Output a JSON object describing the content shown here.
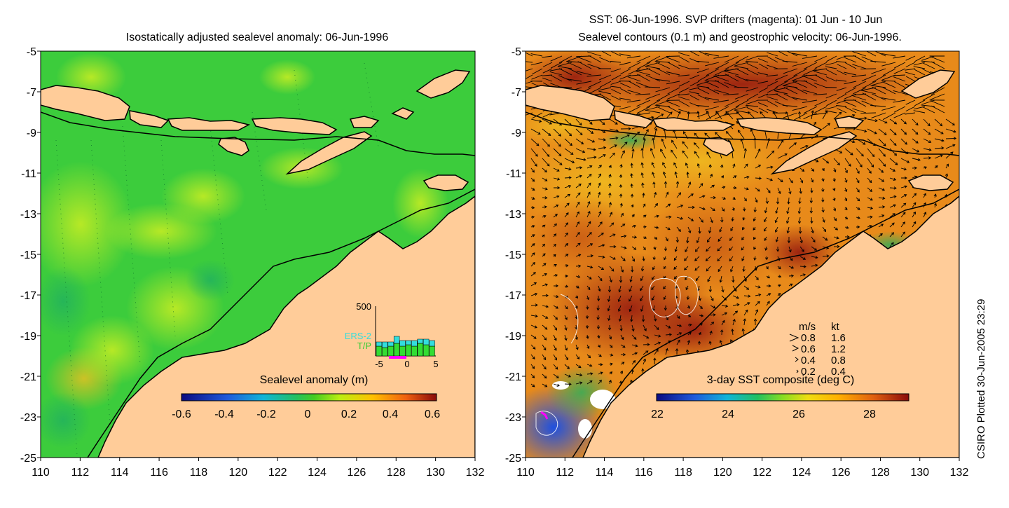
{
  "left_map": {
    "title": "Isostatically adjusted sealevel anomaly: 06-Jun-1996",
    "x_ticks": [
      "110",
      "112",
      "114",
      "116",
      "118",
      "120",
      "122",
      "124",
      "126",
      "128",
      "130",
      "132"
    ],
    "y_ticks": [
      "-5",
      "-7",
      "-9",
      "-11",
      "-13",
      "-15",
      "-17",
      "-19",
      "-21",
      "-23",
      "-25"
    ],
    "colorbar": {
      "label": "Sealevel anomaly (m)",
      "ticks": [
        "-0.6",
        "-0.4",
        "-0.2",
        "0",
        "0.2",
        "0.4",
        "0.6"
      ]
    },
    "histogram": {
      "y_label": "500",
      "legend_ers": "ERS-2",
      "legend_tp": "T/P",
      "x_ticks": [
        "-5",
        "0",
        "5"
      ]
    }
  },
  "right_map": {
    "title_line1": "SST: 06-Jun-1996. SVP drifters (magenta): 01 Jun - 10 Jun",
    "title_line2": "Sealevel contours (0.1 m) and geostrophic velocity: 06-Jun-1996.",
    "x_ticks": [
      "110",
      "112",
      "114",
      "116",
      "118",
      "120",
      "122",
      "124",
      "126",
      "128",
      "130",
      "132"
    ],
    "y_ticks": [
      "-5",
      "-7",
      "-9",
      "-11",
      "-13",
      "-15",
      "-17",
      "-19",
      "-21",
      "-23",
      "-25"
    ],
    "colorbar": {
      "label": "3-day SST composite (deg C)",
      "ticks": [
        "22",
        "24",
        "26",
        "28"
      ]
    },
    "velocity_legend": {
      "header_ms": "m/s",
      "header_kt": "kt",
      "rows": [
        {
          "ms": "0.8",
          "kt": "1.6"
        },
        {
          "ms": "0.6",
          "kt": "1.2"
        },
        {
          "ms": "0.4",
          "kt": "0.8"
        },
        {
          "ms": "0.2",
          "kt": "0.4"
        }
      ]
    }
  },
  "credit": "CSIRO Plotted 30-Jun-2005 23:29",
  "colors": {
    "land": "#ffcc99",
    "sea_green": "#33cc33",
    "sst_orange": "#e88a1a",
    "sst_red": "#a3280e",
    "coast": "#000000"
  }
}
